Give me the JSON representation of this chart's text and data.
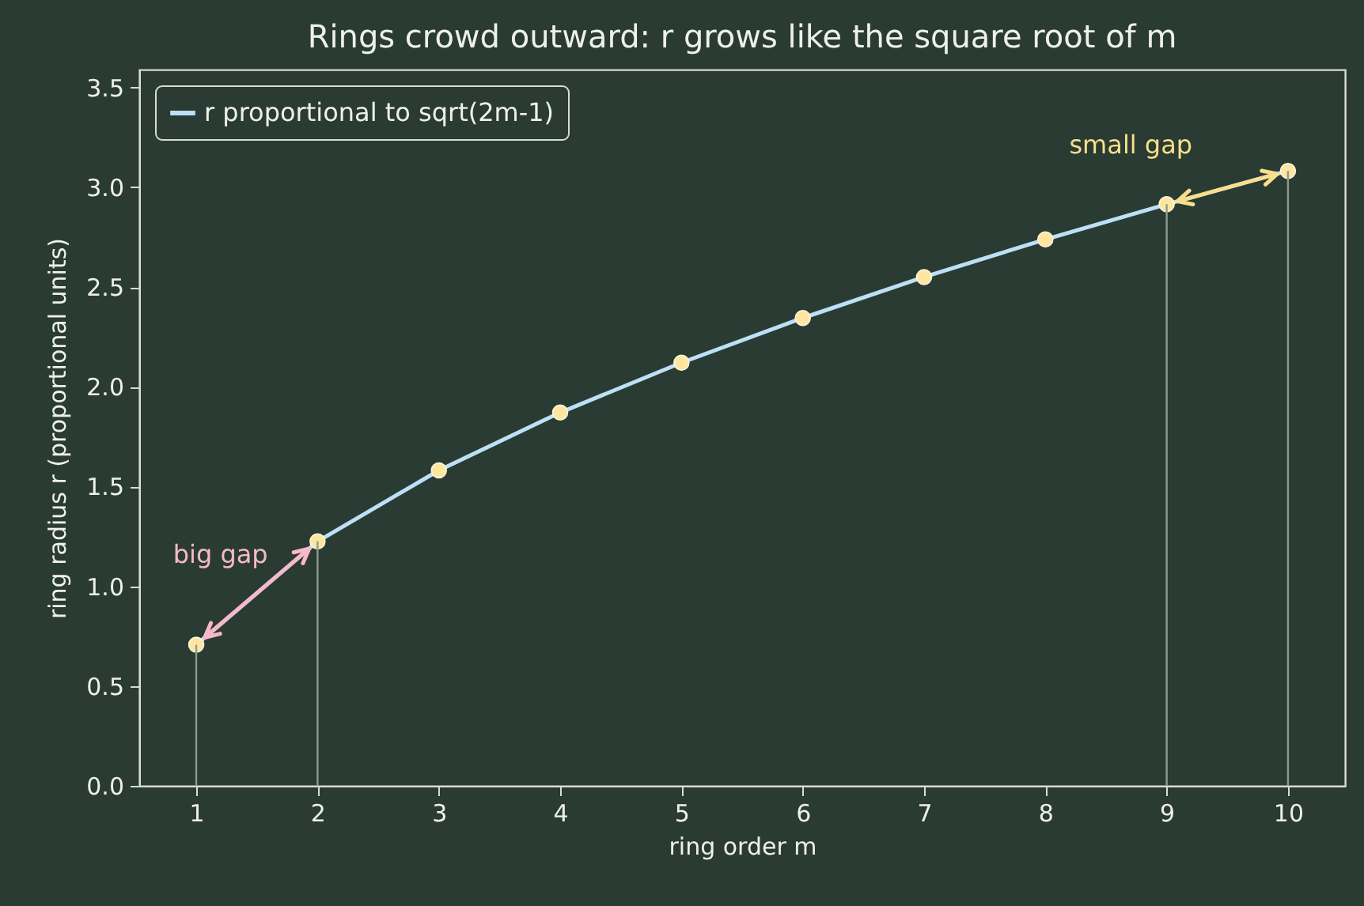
{
  "chart_data": {
    "type": "line",
    "title": "Rings crowd outward: r grows like the square root of m",
    "xlabel": "ring order  m",
    "ylabel": "ring radius  r  (proportional units)",
    "x": [
      1,
      2,
      3,
      4,
      5,
      6,
      7,
      8,
      9,
      10
    ],
    "series": [
      {
        "name": "r proportional to sqrt(2m-1)",
        "color": "#bde0f7",
        "values": [
          0.707,
          1.225,
          1.581,
          1.871,
          2.121,
          2.345,
          2.55,
          2.739,
          2.915,
          3.082
        ]
      },
      {
        "type": "bar",
        "color": "#8c9a92",
        "x": [
          1,
          2,
          9,
          10
        ],
        "values": [
          0.707,
          1.225,
          2.915,
          3.082
        ]
      }
    ],
    "annotations": [
      {
        "text": "big gap",
        "x": 1.5,
        "y": 0.97
      },
      {
        "text": "small gap",
        "x": 9.5,
        "y": 3.0
      }
    ],
    "xlim": [
      0.53,
      10.47
    ],
    "xticks": [
      1,
      2,
      3,
      4,
      5,
      6,
      7,
      8,
      9,
      10
    ],
    "ylim": [
      0,
      3.59
    ],
    "yticks": [
      {
        "value": 0,
        "label": "0.0"
      },
      0.5,
      {
        "value": 1,
        "label": "1.0"
      },
      1.5,
      {
        "value": 2,
        "label": "2.0"
      },
      2.5,
      {
        "value": 3,
        "label": "3.0"
      },
      3.5
    ],
    "grid": false,
    "legend": "top left",
    "marker": "circle",
    "line_style": "solid"
  }
}
